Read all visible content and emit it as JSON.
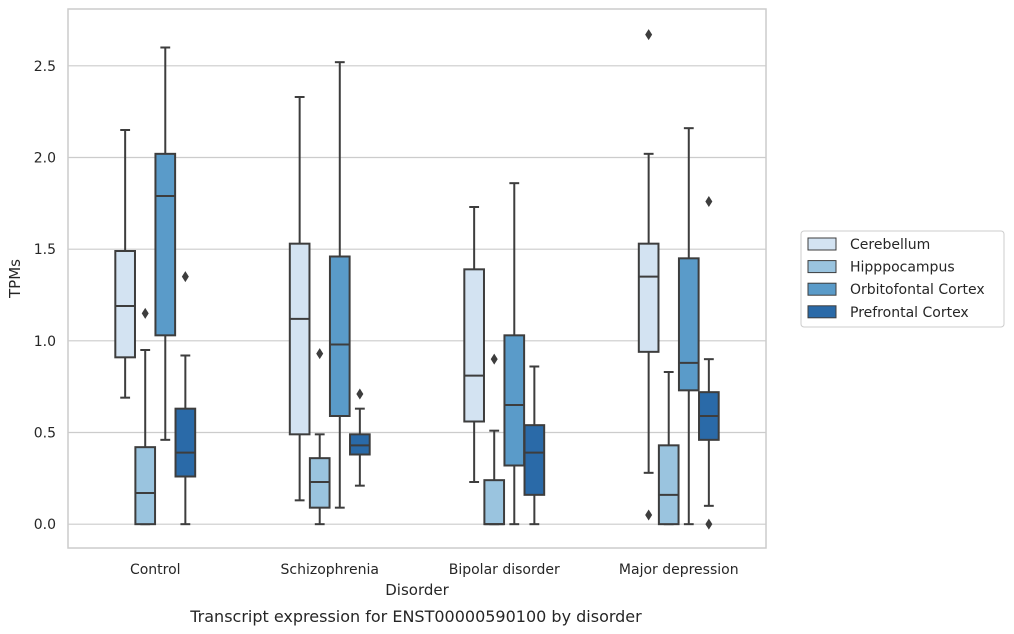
{
  "chart_data": {
    "type": "boxplot",
    "caption": "Transcript expression for ENST00000590100 by disorder",
    "xlabel": "Disorder",
    "ylabel": "TPMs",
    "ylim": [
      -0.13,
      2.81
    ],
    "yticks": [
      0.0,
      0.5,
      1.0,
      1.5,
      2.0,
      2.5
    ],
    "ytick_labels": [
      "0.0",
      "0.5",
      "1.0",
      "1.5",
      "2.0",
      "2.5"
    ],
    "grid": "horizontal",
    "legend_position": "right",
    "categories": [
      "Control",
      "Schizophrenia",
      "Bipolar disorder",
      "Major depression"
    ],
    "series": [
      {
        "name": "Cerebellum",
        "color": "#d3e3f2",
        "boxes": [
          {
            "whislo": 0.69,
            "q1": 0.91,
            "med": 1.19,
            "q3": 1.49,
            "whishi": 2.15,
            "fliers": []
          },
          {
            "whislo": 0.13,
            "q1": 0.49,
            "med": 1.12,
            "q3": 1.53,
            "whishi": 2.33,
            "fliers": []
          },
          {
            "whislo": 0.23,
            "q1": 0.56,
            "med": 0.81,
            "q3": 1.39,
            "whishi": 1.73,
            "fliers": []
          },
          {
            "whislo": 0.28,
            "q1": 0.94,
            "med": 1.35,
            "q3": 1.53,
            "whishi": 2.02,
            "fliers": [
              0.05,
              2.67
            ]
          }
        ]
      },
      {
        "name": "Hipppocampus",
        "color": "#9ac4df",
        "boxes": [
          {
            "whislo": 0.0,
            "q1": 0.0,
            "med": 0.17,
            "q3": 0.42,
            "whishi": 0.95,
            "fliers": [
              1.15
            ]
          },
          {
            "whislo": 0.0,
            "q1": 0.09,
            "med": 0.23,
            "q3": 0.36,
            "whishi": 0.49,
            "fliers": [
              0.93
            ]
          },
          {
            "whislo": 0.0,
            "q1": 0.0,
            "med": 0.0,
            "q3": 0.24,
            "whishi": 0.51,
            "fliers": [
              0.9
            ]
          },
          {
            "whislo": 0.0,
            "q1": 0.0,
            "med": 0.16,
            "q3": 0.43,
            "whishi": 0.83,
            "fliers": []
          }
        ]
      },
      {
        "name": "Orbitofontal Cortex",
        "color": "#5a9bc9",
        "boxes": [
          {
            "whislo": 0.46,
            "q1": 1.03,
            "med": 1.79,
            "q3": 2.02,
            "whishi": 2.6,
            "fliers": []
          },
          {
            "whislo": 0.09,
            "q1": 0.59,
            "med": 0.98,
            "q3": 1.46,
            "whishi": 2.52,
            "fliers": []
          },
          {
            "whislo": 0.0,
            "q1": 0.32,
            "med": 0.65,
            "q3": 1.03,
            "whishi": 1.86,
            "fliers": []
          },
          {
            "whislo": 0.0,
            "q1": 0.73,
            "med": 0.88,
            "q3": 1.45,
            "whishi": 2.16,
            "fliers": []
          }
        ]
      },
      {
        "name": "Prefrontal Cortex",
        "color": "#2a6aa8",
        "boxes": [
          {
            "whislo": 0.0,
            "q1": 0.26,
            "med": 0.39,
            "q3": 0.63,
            "whishi": 0.92,
            "fliers": [
              1.35
            ]
          },
          {
            "whislo": 0.21,
            "q1": 0.38,
            "med": 0.43,
            "q3": 0.49,
            "whishi": 0.63,
            "fliers": [
              0.71
            ]
          },
          {
            "whislo": 0.0,
            "q1": 0.16,
            "med": 0.39,
            "q3": 0.54,
            "whishi": 0.86,
            "fliers": []
          },
          {
            "whislo": 0.1,
            "q1": 0.46,
            "med": 0.59,
            "q3": 0.72,
            "whishi": 0.9,
            "fliers": [
              0.0,
              1.76
            ]
          }
        ]
      }
    ]
  }
}
